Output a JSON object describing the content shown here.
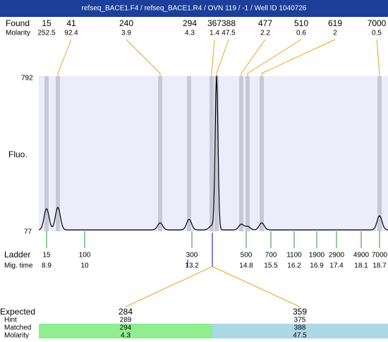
{
  "header": {
    "title": "refseq_BACE1.F4 / refseq_BACE1.R4 / OVN 119 / -1 / Well ID 1040726"
  },
  "found": {
    "label": "Found",
    "molarity_label": "Molarity",
    "peaks": [
      {
        "size": "15",
        "molarity": "252.5"
      },
      {
        "size": "41",
        "molarity": "92.4"
      },
      {
        "size": "240",
        "molarity": "3.9"
      },
      {
        "size": "294",
        "molarity": "4.3"
      },
      {
        "size": "367",
        "molarity": "1.4"
      },
      {
        "size": "388",
        "molarity": "47.5"
      },
      {
        "size": "477",
        "molarity": "2.2"
      },
      {
        "size": "510",
        "molarity": "0.6"
      },
      {
        "size": "619",
        "molarity": "2"
      },
      {
        "size": "7000",
        "molarity": "0.5"
      }
    ]
  },
  "plot": {
    "y_label": "Fluo.",
    "y_max": "792",
    "y_min": "77"
  },
  "ladder": {
    "label": "Ladder",
    "time_label": "Mig. time",
    "steps": [
      {
        "size": "15",
        "time": "8.9"
      },
      {
        "size": "100",
        "time": "10"
      },
      {
        "size": "300",
        "time": "13.2"
      },
      {
        "size": "500",
        "time": "14.8"
      },
      {
        "size": "700",
        "time": "15.5"
      },
      {
        "size": "1100",
        "time": "16.2"
      },
      {
        "size": "1900",
        "time": "16.9"
      },
      {
        "size": "2900",
        "time": "17.4"
      },
      {
        "size": "4900",
        "time": "18.1"
      },
      {
        "size": "7000",
        "time": "18.7"
      }
    ]
  },
  "expected": {
    "expected_label": "Expected",
    "hint_label": "Hint",
    "matched_label": "Matched",
    "molarity_label": "Molarity",
    "columns": [
      {
        "expected": "284",
        "hint": "289",
        "matched": "294",
        "molarity": "4.3"
      },
      {
        "expected": "359",
        "hint": "375",
        "matched": "388",
        "molarity": "47.5"
      }
    ]
  }
}
